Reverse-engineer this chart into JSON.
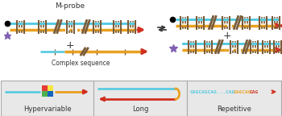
{
  "title": "M-probe",
  "complex_seq_label": "Complex sequence",
  "panel_labels": [
    "Hypervariable",
    "Long",
    "Repetitive"
  ],
  "repetitive_text_cyan": "CAGCAGCAG...CAG",
  "repetitive_text_orange": "CAGCAG",
  "repetitive_text_red": "CAG",
  "cyan": "#4dc8e0",
  "orange": "#e8a020",
  "red": "#d03020",
  "yellow_green": "#a0c020",
  "dark": "#333333",
  "purple": "#8060b0",
  "brown": "#7a5c3a",
  "panel_bg": "#e8e8e8",
  "panel_border": "#aaaaaa",
  "sq_colors": [
    "#e53935",
    "#f5e642",
    "#4caf50",
    "#1565c0"
  ]
}
